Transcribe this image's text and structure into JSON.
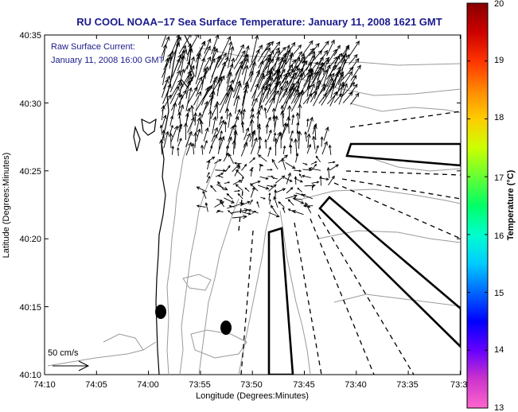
{
  "title": "RU COOL  NOAA−17  Sea Surface Temperature:  January 11, 2008 1621 GMT",
  "annotation": {
    "line1": "Raw Surface Current:",
    "line2": "January 11, 2008 16:00 GMT"
  },
  "scale_label": "50 cm/s",
  "x_axis": {
    "label": "Longitude (Degrees:Minutes)",
    "ticks": [
      "74:10",
      "74:05",
      "74:00",
      "73:55",
      "73:50",
      "73:45",
      "73:40",
      "73:35",
      "73:3"
    ]
  },
  "y_axis": {
    "label": "Latitude (Degrees:Minutes)",
    "ticks": [
      "40:35",
      "40:30",
      "40:25",
      "40:20",
      "40:15",
      "40:10"
    ]
  },
  "colorbar": {
    "label": "Temperature (°C)",
    "ticks": [
      "20",
      "19",
      "18",
      "17",
      "16",
      "15",
      "14",
      "13"
    ],
    "min": 13,
    "max": 20,
    "colors": [
      "#ff66cc",
      "#cc33cc",
      "#6600ff",
      "#0000ff",
      "#0066ff",
      "#00ccff",
      "#00ffcc",
      "#00ff66",
      "#66ff33",
      "#ccff00",
      "#ffcc00",
      "#ff8800",
      "#ff3300",
      "#cc0000",
      "#880000"
    ]
  },
  "colors": {
    "title": "#1a1a8c",
    "land": "#000000",
    "contours": "#9a9a9a",
    "vectors": "#000000"
  }
}
